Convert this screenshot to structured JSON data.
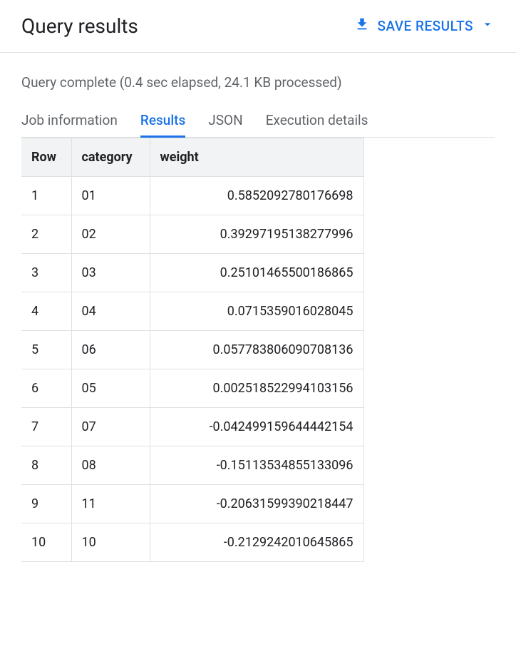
{
  "header": {
    "title": "Query results",
    "save_label": "SAVE RESULTS"
  },
  "status": "Query complete (0.4 sec elapsed, 24.1 KB processed)",
  "tabs": {
    "items": [
      {
        "label": "Job information",
        "active": false
      },
      {
        "label": "Results",
        "active": true
      },
      {
        "label": "JSON",
        "active": false
      },
      {
        "label": "Execution details",
        "active": false
      }
    ]
  },
  "table": {
    "columns": [
      "Row",
      "category",
      "weight"
    ],
    "column_align": [
      "left",
      "left",
      "right"
    ],
    "rows": [
      {
        "row": "1",
        "category": "01",
        "weight": "0.5852092780176698"
      },
      {
        "row": "2",
        "category": "02",
        "weight": "0.39297195138277996"
      },
      {
        "row": "3",
        "category": "03",
        "weight": "0.25101465500186865"
      },
      {
        "row": "4",
        "category": "04",
        "weight": "0.0715359016028045"
      },
      {
        "row": "5",
        "category": "06",
        "weight": "0.057783806090708136"
      },
      {
        "row": "6",
        "category": "05",
        "weight": "0.002518522994103156"
      },
      {
        "row": "7",
        "category": "07",
        "weight": "-0.042499159644442154"
      },
      {
        "row": "8",
        "category": "08",
        "weight": "-0.15113534855133096"
      },
      {
        "row": "9",
        "category": "11",
        "weight": "-0.20631599390218447"
      },
      {
        "row": "10",
        "category": "10",
        "weight": "-0.2129242010645865"
      }
    ]
  },
  "colors": {
    "primary": "#1a73e8",
    "text": "#202124",
    "text_secondary": "#5f6368",
    "border": "#e0e0e0",
    "header_bg": "#f1f3f4",
    "background": "#ffffff"
  }
}
